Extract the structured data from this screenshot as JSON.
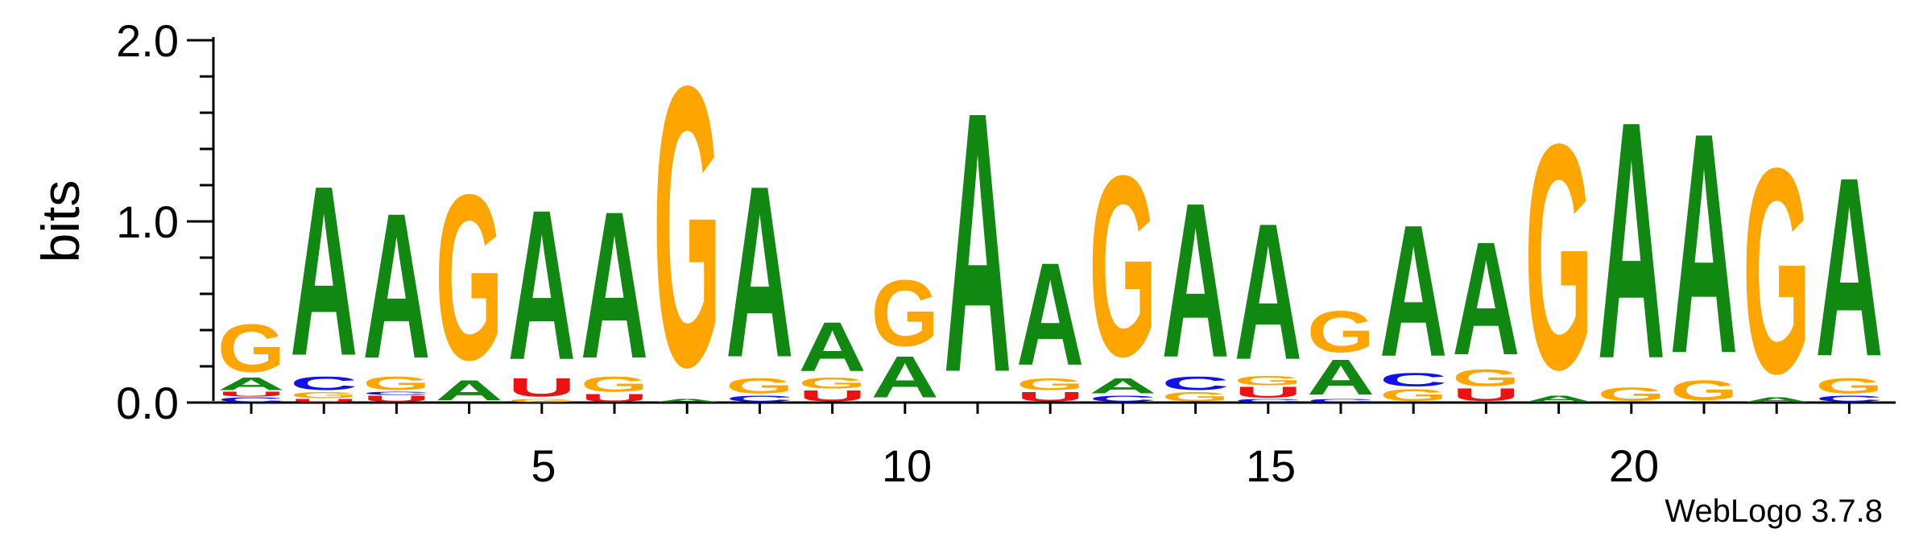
{
  "chart_data": {
    "type": "sequence_logo",
    "ylabel": "bits",
    "ylim": [
      0,
      2.0
    ],
    "y_ticks": [
      0.0,
      1.0,
      2.0
    ],
    "y_tick_labels": [
      "0.0",
      "1.0",
      "2.0"
    ],
    "x_ticks": [
      5,
      10,
      15,
      20
    ],
    "x_tick_labels": [
      "5",
      "10",
      "15",
      "20"
    ],
    "positions": [
      [
        {
          "letter": "C",
          "bits": 0.03
        },
        {
          "letter": "U",
          "bits": 0.03
        },
        {
          "letter": "A",
          "bits": 0.08
        },
        {
          "letter": "G",
          "bits": 0.31
        }
      ],
      [
        {
          "letter": "U",
          "bits": 0.02
        },
        {
          "letter": "G",
          "bits": 0.04
        },
        {
          "letter": "C",
          "bits": 0.09
        },
        {
          "letter": "A",
          "bits": 1.11
        }
      ],
      [
        {
          "letter": "U",
          "bits": 0.04
        },
        {
          "letter": "C",
          "bits": 0.02
        },
        {
          "letter": "G",
          "bits": 0.09
        },
        {
          "letter": "A",
          "bits": 0.95
        }
      ],
      [
        {
          "letter": "A",
          "bits": 0.13
        },
        {
          "letter": "G",
          "bits": 1.08
        }
      ],
      [
        {
          "letter": "G",
          "bits": 0.02
        },
        {
          "letter": "U",
          "bits": 0.12
        },
        {
          "letter": "A",
          "bits": 0.98
        }
      ],
      [
        {
          "letter": "U",
          "bits": 0.05
        },
        {
          "letter": "G",
          "bits": 0.1
        },
        {
          "letter": "A",
          "bits": 0.96
        }
      ],
      [
        {
          "letter": "A",
          "bits": 0.02
        },
        {
          "letter": "G",
          "bits": 1.83
        }
      ],
      [
        {
          "letter": "C",
          "bits": 0.04
        },
        {
          "letter": "G",
          "bits": 0.1
        },
        {
          "letter": "A",
          "bits": 1.12
        }
      ],
      [
        {
          "letter": "U",
          "bits": 0.07
        },
        {
          "letter": "G",
          "bits": 0.07
        },
        {
          "letter": "A",
          "bits": 0.32
        }
      ],
      [
        {
          "letter": "A",
          "bits": 0.27
        },
        {
          "letter": "G",
          "bits": 0.43
        }
      ],
      [
        {
          "letter": "A",
          "bits": 1.7
        }
      ],
      [
        {
          "letter": "U",
          "bits": 0.06
        },
        {
          "letter": "G",
          "bits": 0.08
        },
        {
          "letter": "A",
          "bits": 0.67
        }
      ],
      [
        {
          "letter": "C",
          "bits": 0.04
        },
        {
          "letter": "A",
          "bits": 0.1
        },
        {
          "letter": "G",
          "bits": 1.18
        }
      ],
      [
        {
          "letter": "G",
          "bits": 0.06
        },
        {
          "letter": "C",
          "bits": 0.09
        },
        {
          "letter": "A",
          "bits": 1.01
        }
      ],
      [
        {
          "letter": "C",
          "bits": 0.02
        },
        {
          "letter": "U",
          "bits": 0.07
        },
        {
          "letter": "G",
          "bits": 0.06
        },
        {
          "letter": "A",
          "bits": 0.89
        }
      ],
      [
        {
          "letter": "C",
          "bits": 0.02
        },
        {
          "letter": "A",
          "bits": 0.23
        },
        {
          "letter": "G",
          "bits": 0.27
        }
      ],
      [
        {
          "letter": "G",
          "bits": 0.08
        },
        {
          "letter": "C",
          "bits": 0.09
        },
        {
          "letter": "A",
          "bits": 0.86
        }
      ],
      [
        {
          "letter": "U",
          "bits": 0.08
        },
        {
          "letter": "G",
          "bits": 0.11
        },
        {
          "letter": "A",
          "bits": 0.74
        }
      ],
      [
        {
          "letter": "A",
          "bits": 0.04
        },
        {
          "letter": "G",
          "bits": 1.47
        }
      ],
      [
        {
          "letter": "G",
          "bits": 0.09
        },
        {
          "letter": "A",
          "bits": 1.55
        }
      ],
      [
        {
          "letter": "G",
          "bits": 0.13
        },
        {
          "letter": "A",
          "bits": 1.44
        }
      ],
      [
        {
          "letter": "A",
          "bits": 0.03
        },
        {
          "letter": "G",
          "bits": 1.34
        }
      ],
      [
        {
          "letter": "C",
          "bits": 0.04
        },
        {
          "letter": "G",
          "bits": 0.1
        },
        {
          "letter": "A",
          "bits": 1.17
        }
      ]
    ],
    "colors": {
      "A": "#118811",
      "C": "#1111ee",
      "G": "#ffa500",
      "U": "#ee1111"
    }
  },
  "credit": "WebLogo 3.7.8"
}
